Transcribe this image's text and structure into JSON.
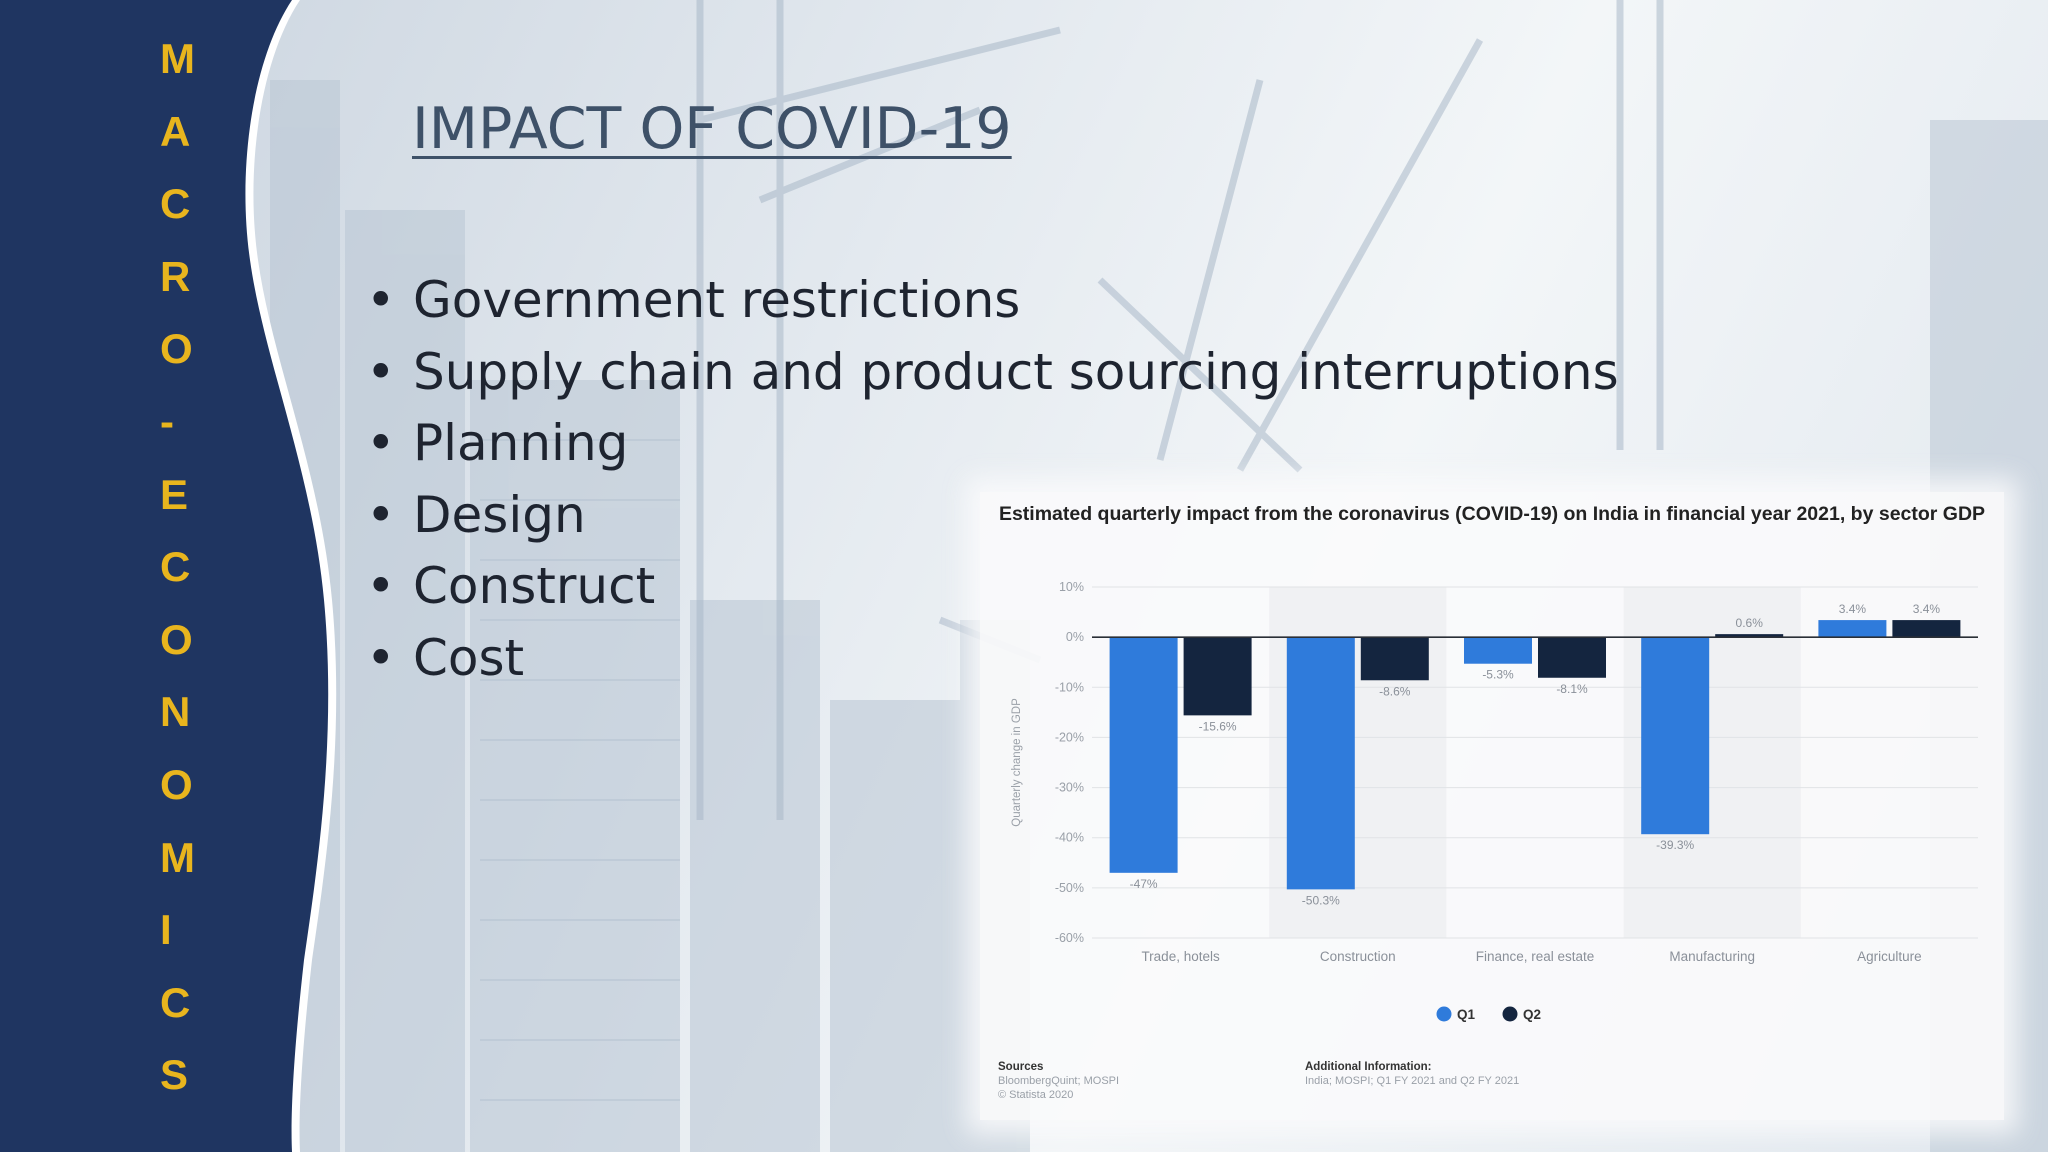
{
  "sidebar": {
    "letters": [
      "M",
      "A",
      "C",
      "R",
      "O",
      "-",
      "E",
      "C",
      "O",
      "N",
      "O",
      "M",
      "I",
      "C",
      "S"
    ],
    "bg_color": "#1f3561",
    "letter_color": "#e8b51e"
  },
  "slide": {
    "title": "IMPACT OF COVID-19",
    "bullets": [
      "Government restrictions",
      "Supply chain and product sourcing interruptions",
      "Planning",
      "Design",
      "Construct",
      "Cost"
    ],
    "bullet_symbol": "•"
  },
  "chart_data": {
    "type": "bar",
    "title": "Estimated quarterly impact from the coronavirus (COVID-19) on India in financial year 2021, by sector GDP",
    "ylabel": "Quarterly change in GDP",
    "xlabel": "",
    "categories": [
      "Trade, hotels",
      "Construction",
      "Finance, real estate",
      "Manufacturing",
      "Agriculture"
    ],
    "series": [
      {
        "name": "Q1",
        "color": "#2f7bdb",
        "values": [
          -47,
          -50.3,
          -5.3,
          -39.3,
          3.4
        ],
        "labels": [
          "-47%",
          "-50.3%",
          "-5.3%",
          "-39.3%",
          "3.4%"
        ]
      },
      {
        "name": "Q2",
        "color": "#14253f",
        "values": [
          -15.6,
          -8.6,
          -8.1,
          0.6,
          3.4
        ],
        "labels": [
          "-15.6%",
          "-8.6%",
          "-8.1%",
          "0.6%",
          "3.4%"
        ]
      }
    ],
    "ylim": [
      -60,
      10
    ],
    "yticks": [
      10,
      0,
      -10,
      -20,
      -30,
      -40,
      -50,
      -60
    ],
    "ytick_labels": [
      "10%",
      "0%",
      "-10%",
      "-20%",
      "-30%",
      "-40%",
      "-50%",
      "-60%"
    ],
    "grid": true,
    "legend": "bottom-center",
    "sources_heading": "Sources",
    "sources_lines": [
      "BloombergQuint; MOSPI",
      "© Statista 2020"
    ],
    "additional_heading": "Additional Information:",
    "additional_lines": [
      "India; MOSPI; Q1 FY 2021 and Q2 FY 2021"
    ]
  }
}
